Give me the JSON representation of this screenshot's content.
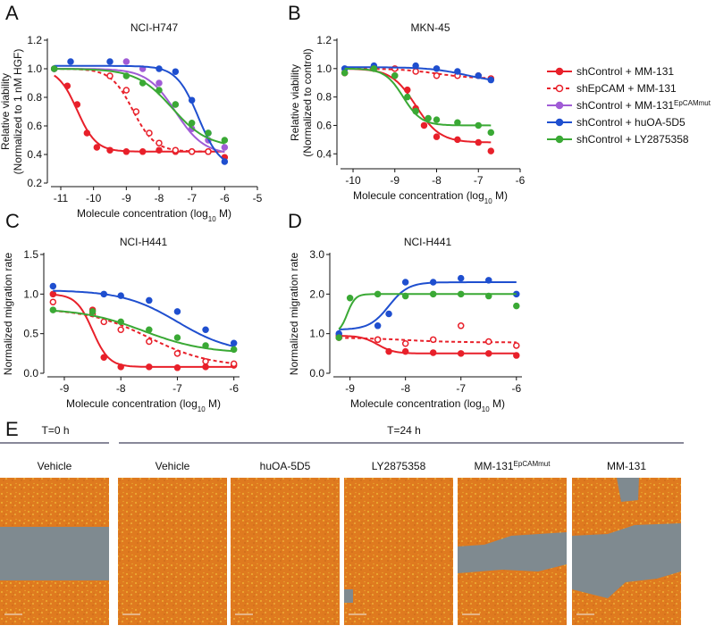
{
  "panel_labels": [
    "A",
    "B",
    "C",
    "D",
    "E"
  ],
  "chart_data": [
    {
      "type": "dose-response",
      "title": "NCI-H747",
      "ylabel": [
        "Relative viability",
        "(Normalized to 1 nM HGF)"
      ],
      "xlabel": [
        "Molecule concentration (log",
        "10",
        " M)"
      ],
      "xlim": [
        -11.3,
        -5
      ],
      "xticks": [
        -11,
        -10,
        -9,
        -8,
        -7,
        -6,
        -5
      ],
      "ylim": [
        0.2,
        1.2
      ],
      "yticks": [
        0.2,
        0.4,
        0.6,
        0.8,
        {
          "value": 1.0,
          "label": "1.0"
        },
        1.2
      ],
      "series": [
        {
          "name": "shControl + MM-131",
          "color": "#e8202a",
          "dashed": false,
          "filled": true,
          "x": [
            -11.2,
            -10.8,
            -10.5,
            -10.2,
            -9.9,
            -9.5,
            -9,
            -8.5,
            -8,
            -7.5,
            -7,
            -6.5,
            -6
          ],
          "values": [
            1.0,
            0.88,
            0.75,
            0.55,
            0.45,
            0.43,
            0.42,
            0.42,
            0.43,
            0.42,
            0.42,
            0.42,
            0.38
          ],
          "fit": {
            "start": 1.0,
            "end": 0.42,
            "logec50": -10.5,
            "hill": 1.5
          }
        },
        {
          "name": "shEpCAM + MM-131",
          "color": "#e8202a",
          "dashed": true,
          "filled": false,
          "x": [
            -11.2,
            -9.5,
            -9,
            -8.7,
            -8.3,
            -8,
            -7.5,
            -7,
            -6.5
          ],
          "values": [
            1.0,
            0.95,
            0.85,
            0.7,
            0.55,
            0.48,
            0.43,
            0.42,
            0.42
          ],
          "fit": {
            "start": 1.0,
            "end": 0.42,
            "logec50": -8.8,
            "hill": 1.3
          }
        },
        {
          "name": "shControl + MM-131",
          "name_superscript": "EpCAMmut",
          "color": "#a05cd6",
          "dashed": false,
          "filled": true,
          "x": [
            -11.2,
            -9,
            -8.5,
            -8,
            -7.5,
            -7,
            -6.5,
            -6
          ],
          "values": [
            1.0,
            1.05,
            1.0,
            0.9,
            0.75,
            0.58,
            0.5,
            0.45
          ],
          "fit": {
            "start": 1.0,
            "end": 0.4,
            "logec50": -7.5,
            "hill": 1.0
          }
        },
        {
          "name": "shControl + huOA-5D5",
          "color": "#1f4fcf",
          "dashed": false,
          "filled": true,
          "x": [
            -11.2,
            -10.7,
            -9.5,
            -8,
            -7.5,
            -7,
            -6.5,
            -6
          ],
          "values": [
            1.0,
            1.05,
            1.05,
            1.0,
            0.98,
            0.78,
            0.55,
            0.35
          ],
          "fit": {
            "start": 1.02,
            "end": 0.3,
            "logec50": -6.8,
            "hill": 1.3
          }
        },
        {
          "name": "shControl + LY2875358",
          "color": "#3aa935",
          "dashed": false,
          "filled": true,
          "x": [
            -11.2,
            -9,
            -8.5,
            -8,
            -7.5,
            -7,
            -6.5,
            -6
          ],
          "values": [
            1.0,
            0.95,
            0.9,
            0.85,
            0.75,
            0.62,
            0.55,
            0.5
          ],
          "fit": {
            "start": 1.0,
            "end": 0.45,
            "logec50": -7.6,
            "hill": 0.8
          }
        }
      ]
    },
    {
      "type": "dose-response",
      "title": "MKN-45",
      "ylabel": [
        "Relative viability",
        "(Normalized to control)"
      ],
      "xlabel": [
        "Molecule concentration (log",
        "10",
        " M)"
      ],
      "xlim": [
        -10.3,
        -6
      ],
      "xticks": [
        -10,
        -9,
        -8,
        -7,
        -6
      ],
      "ylim": [
        0.32,
        1.2
      ],
      "yticks": [
        0.4,
        0.6,
        0.8,
        {
          "value": 1.0,
          "label": "1.0"
        },
        1.2
      ],
      "series": [
        {
          "color": "#e8202a",
          "dashed": false,
          "filled": true,
          "x": [
            -10.2,
            -9.5,
            -9,
            -8.7,
            -8.5,
            -8.3,
            -8,
            -7.5,
            -7,
            -6.7
          ],
          "values": [
            0.97,
            1.0,
            0.95,
            0.85,
            0.72,
            0.6,
            0.52,
            0.5,
            0.48,
            0.42
          ],
          "fit": {
            "start": 1.0,
            "end": 0.48,
            "logec50": -8.5,
            "hill": 1.5
          }
        },
        {
          "color": "#e8202a",
          "dashed": true,
          "filled": false,
          "x": [
            -10.2,
            -9,
            -8.5,
            -8,
            -7.5,
            -7,
            -6.7
          ],
          "values": [
            0.97,
            1.0,
            0.98,
            0.95,
            0.95,
            0.95,
            0.93
          ],
          "fit": {
            "start": 1.0,
            "end": 0.93,
            "logec50": -8,
            "hill": 1
          }
        },
        {
          "color": "#1f4fcf",
          "dashed": false,
          "filled": true,
          "x": [
            -10.2,
            -9.5,
            -8.5,
            -8,
            -7.5,
            -7,
            -6.7
          ],
          "values": [
            1.0,
            1.02,
            1.02,
            1.0,
            0.98,
            0.95,
            0.92
          ],
          "fit": {
            "start": 1.01,
            "end": 0.9,
            "logec50": -7.3,
            "hill": 1
          }
        },
        {
          "color": "#3aa935",
          "dashed": false,
          "filled": true,
          "x": [
            -10.2,
            -9.5,
            -9,
            -8.7,
            -8.5,
            -8.2,
            -8,
            -7.5,
            -7,
            -6.7
          ],
          "values": [
            0.97,
            1.0,
            0.95,
            0.8,
            0.7,
            0.65,
            0.64,
            0.62,
            0.6,
            0.55
          ],
          "fit": {
            "start": 1.0,
            "end": 0.6,
            "logec50": -8.8,
            "hill": 2
          }
        }
      ]
    },
    {
      "type": "dose-response",
      "title": "NCI-H441",
      "ylabel": [
        "Normalized migration rate"
      ],
      "xlabel": [
        "Molecule concentration (log",
        "10",
        " M)"
      ],
      "xlim": [
        -9.3,
        -5.9
      ],
      "xticks": [
        -9,
        -8,
        -7,
        -6
      ],
      "ylim": [
        0,
        1.5
      ],
      "yticks": [
        {
          "value": 0,
          "label": "0.0"
        },
        0.5,
        {
          "value": 1.0,
          "label": "1.0"
        },
        1.5
      ],
      "series": [
        {
          "color": "#e8202a",
          "dashed": false,
          "filled": true,
          "x": [
            -9.2,
            -8.5,
            -8.3,
            -8,
            -7.5,
            -7,
            -6.5,
            -6
          ],
          "values": [
            1.0,
            0.8,
            0.2,
            0.08,
            0.08,
            0.07,
            0.08,
            0.1
          ],
          "fit": {
            "start": 1.0,
            "end": 0.08,
            "logec50": -8.5,
            "hill": 3
          }
        },
        {
          "color": "#e8202a",
          "dashed": true,
          "filled": false,
          "x": [
            -9.2,
            -8.5,
            -8.3,
            -8,
            -7.5,
            -7,
            -6.5,
            -6
          ],
          "values": [
            0.9,
            0.75,
            0.65,
            0.55,
            0.4,
            0.25,
            0.15,
            0.12
          ],
          "fit": {
            "start": 0.82,
            "end": 0.08,
            "logec50": -7.5,
            "hill": 0.8
          }
        },
        {
          "color": "#1f4fcf",
          "dashed": false,
          "filled": true,
          "x": [
            -9.2,
            -8.3,
            -8,
            -7.5,
            -7,
            -6.5,
            -6
          ],
          "values": [
            1.1,
            1.0,
            0.98,
            0.92,
            0.78,
            0.55,
            0.38
          ],
          "fit": {
            "start": 1.05,
            "end": 0.25,
            "logec50": -7,
            "hill": 0.9
          }
        },
        {
          "color": "#3aa935",
          "dashed": false,
          "filled": true,
          "x": [
            -9.2,
            -8.5,
            -8,
            -7.5,
            -7,
            -6.5,
            -6
          ],
          "values": [
            0.8,
            0.78,
            0.65,
            0.55,
            0.45,
            0.35,
            0.3
          ],
          "fit": {
            "start": 0.82,
            "end": 0.25,
            "logec50": -7.6,
            "hill": 0.8
          }
        }
      ]
    },
    {
      "type": "dose-response",
      "title": "NCI-H441",
      "ylabel": [
        "Normalized migration rate"
      ],
      "xlabel": [
        "Molecule concentration (log",
        "10",
        " M)"
      ],
      "xlim": [
        -9.3,
        -5.9
      ],
      "xticks": [
        -9,
        -8,
        -7,
        -6
      ],
      "ylim": [
        0,
        3
      ],
      "yticks": [
        {
          "value": 0,
          "label": "0.0"
        },
        {
          "value": 1,
          "label": "1.0"
        },
        {
          "value": 2,
          "label": "2.0"
        },
        {
          "value": 3,
          "label": "3.0"
        }
      ],
      "series": [
        {
          "color": "#e8202a",
          "dashed": false,
          "filled": true,
          "x": [
            -9.2,
            -8.5,
            -8.3,
            -8,
            -7.5,
            -7,
            -6.5,
            -6
          ],
          "values": [
            0.95,
            0.85,
            0.55,
            0.55,
            0.52,
            0.5,
            0.5,
            0.45
          ],
          "fit": {
            "start": 0.95,
            "end": 0.5,
            "logec50": -8.5,
            "hill": 3
          }
        },
        {
          "color": "#e8202a",
          "dashed": true,
          "filled": false,
          "x": [
            -9.2,
            -8.5,
            -8,
            -7.5,
            -7,
            -6.5,
            -6
          ],
          "values": [
            0.9,
            0.85,
            0.75,
            0.85,
            1.2,
            0.8,
            0.7
          ],
          "fit": {
            "start": 0.9,
            "end": 0.78,
            "logec50": -8,
            "hill": 1
          }
        },
        {
          "color": "#1f4fcf",
          "dashed": false,
          "filled": true,
          "x": [
            -9.2,
            -8.5,
            -8.3,
            -8,
            -7.5,
            -7,
            -6.5,
            -6
          ],
          "values": [
            1.0,
            1.2,
            1.5,
            2.3,
            2.3,
            2.4,
            2.35,
            2.0
          ],
          "fit": {
            "start": 1.1,
            "end": 2.3,
            "logec50": -8.3,
            "hill": 2.5
          }
        },
        {
          "color": "#3aa935",
          "dashed": false,
          "filled": true,
          "x": [
            -9.2,
            -9,
            -8.5,
            -8,
            -7.5,
            -7,
            -6.5,
            -6
          ],
          "values": [
            0.9,
            1.9,
            2.0,
            1.95,
            2.0,
            2.0,
            1.95,
            1.7
          ],
          "fit": {
            "start": 1.0,
            "end": 2.0,
            "logec50": -9.05,
            "hill": 6
          }
        }
      ]
    }
  ],
  "images": {
    "groups": [
      "T=0 h",
      "T=24 h"
    ],
    "labels": [
      {
        "text": "Vehicle"
      },
      {
        "text": "Vehicle"
      },
      {
        "text": "huOA-5D5"
      },
      {
        "text": "LY2875358"
      },
      {
        "text": "MM-131",
        "superscript": "EpCAMmut"
      },
      {
        "text": "MM-131"
      }
    ]
  }
}
